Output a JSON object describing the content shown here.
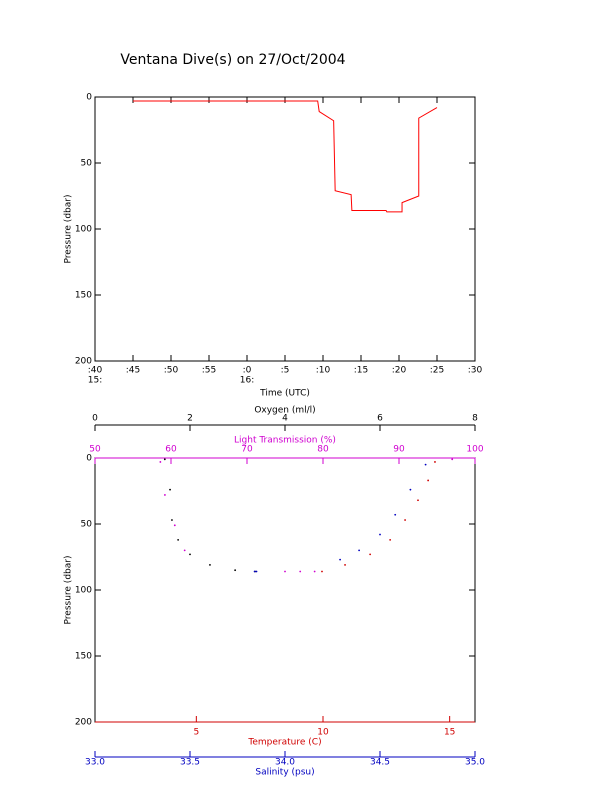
{
  "title": "Ventana Dive(s) on 27/Oct/2004",
  "chart_data": [
    {
      "type": "line",
      "y_label": "Pressure (dbar)",
      "x_label": "Time (UTC)",
      "xlim": [
        40,
        90
      ],
      "xticks": [
        {
          "value": 40,
          "label": ":40"
        },
        {
          "value": 45,
          "label": ":45"
        },
        {
          "value": 50,
          "label": ":50"
        },
        {
          "value": 55,
          "label": ":55"
        },
        {
          "value": 60,
          "label": ":0"
        },
        {
          "value": 65,
          "label": ":5"
        },
        {
          "value": 70,
          "label": ":10"
        },
        {
          "value": 75,
          "label": ":15"
        },
        {
          "value": 80,
          "label": ":20"
        },
        {
          "value": 85,
          "label": ":25"
        },
        {
          "value": 90,
          "label": ":30"
        }
      ],
      "xticks2": [
        {
          "value": 40,
          "label": "15:"
        },
        {
          "value": 60,
          "label": "16:"
        }
      ],
      "ylim": [
        0,
        200
      ],
      "yticks": [
        0,
        50,
        100,
        150,
        200
      ],
      "y_inverted": true,
      "x": [
        45.0,
        69.3,
        69.5,
        71.4,
        71.6,
        73.7,
        73.8,
        78.3,
        78.4,
        80.4,
        80.4,
        82.6,
        82.6,
        85.0
      ],
      "series": [
        {
          "color": "#ff0000",
          "values": [
            3,
            3,
            11,
            18,
            71,
            74,
            86,
            86,
            87,
            87,
            80,
            75,
            16,
            8
          ]
        }
      ]
    },
    {
      "type": "scatter",
      "y_label": "Pressure (dbar)",
      "ylim": [
        0,
        200
      ],
      "yticks": [
        0,
        50,
        100,
        150,
        200
      ],
      "y_inverted": true,
      "xaxes": [
        {
          "label": "Oxygen (ml/l)",
          "color": "#000000",
          "lim": [
            0,
            8
          ],
          "ticks": [
            0,
            2,
            4,
            6,
            8
          ]
        },
        {
          "label": "Light Transmission (%)",
          "color": "#d000d0",
          "lim": [
            50,
            100
          ],
          "ticks": [
            50,
            60,
            70,
            80,
            90,
            100
          ]
        },
        {
          "label": "Temperature (C)",
          "color": "#d00000",
          "lim": [
            1,
            16
          ],
          "ticks": [
            5,
            10,
            15
          ]
        },
        {
          "label": "Salinity (psu)",
          "color": "#0000c0",
          "lim": [
            33,
            35
          ],
          "ticks": [
            {
              "value": 33,
              "label": "33.0"
            },
            33.5,
            {
              "value": 34,
              "label": "34.0"
            },
            34.5,
            {
              "value": 35,
              "label": "35.0"
            }
          ]
        }
      ],
      "series": [
        {
          "xaxis": 0,
          "color": "#000000",
          "x": [
            1.47,
            1.58,
            1.62,
            1.75,
            2.0,
            2.42,
            2.95,
            3.37
          ],
          "values": [
            1,
            24,
            47,
            62,
            73,
            81,
            85,
            86
          ]
        },
        {
          "xaxis": 1,
          "color": "#d000d0",
          "x": [
            58.6,
            59.2,
            60.5,
            61.8,
            75,
            77,
            78.9,
            97
          ],
          "values": [
            3,
            28,
            51,
            70,
            86,
            86,
            86,
            1
          ]
        },
        {
          "xaxis": 2,
          "color": "#d00000",
          "x": [
            14.42,
            14.15,
            13.75,
            13.24,
            12.65,
            11.86,
            10.87,
            9.96
          ],
          "values": [
            3,
            17,
            32,
            47,
            62,
            73,
            81,
            86
          ]
        },
        {
          "xaxis": 3,
          "color": "#0000c0",
          "x": [
            34.74,
            34.66,
            34.58,
            34.5,
            34.39,
            34.29,
            33.84,
            33.85
          ],
          "values": [
            5,
            24,
            43,
            58,
            70,
            77,
            86,
            86
          ]
        }
      ]
    }
  ]
}
